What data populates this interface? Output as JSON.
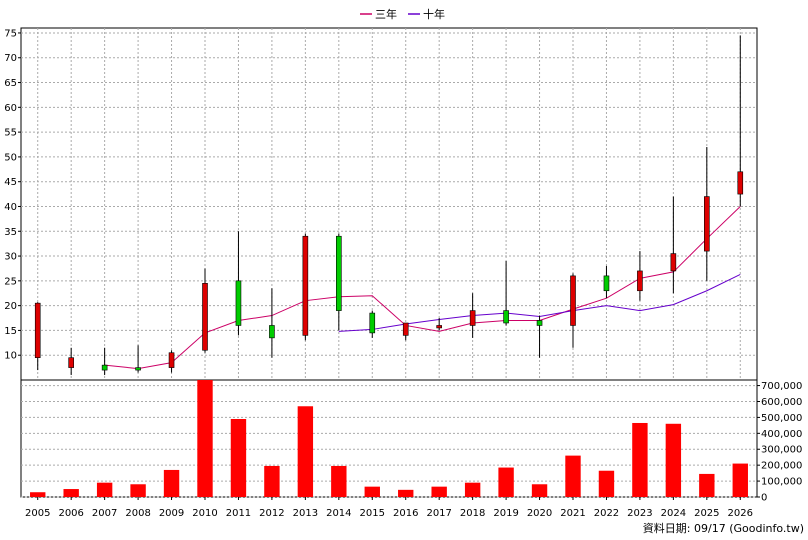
{
  "legend": [
    {
      "label": "三年",
      "color": "#cc0066"
    },
    {
      "label": "十年",
      "color": "#6600cc"
    }
  ],
  "footer": "資料日期: 09/17  (Goodinfo.tw)",
  "colors": {
    "up": "#dd0000",
    "down": "#00cc00",
    "volume": "#ff0000",
    "grid": "#aaaaaa"
  },
  "chart_data": {
    "type": "candlestick+bar",
    "categories": [
      "2005",
      "2006",
      "2007",
      "2008",
      "2009",
      "2010",
      "2011",
      "2012",
      "2013",
      "2014",
      "2015",
      "2016",
      "2017",
      "2018",
      "2019",
      "2020",
      "2021",
      "2022",
      "2023",
      "2024",
      "2025",
      "2026"
    ],
    "price_axis": {
      "ylim": [
        5,
        76
      ],
      "ticks": [
        10,
        15,
        20,
        25,
        30,
        35,
        40,
        45,
        50,
        55,
        60,
        65,
        70,
        75
      ]
    },
    "volume_axis": {
      "ylim": [
        0,
        735000
      ],
      "ticks": [
        0,
        100000,
        200000,
        300000,
        400000,
        500000,
        600000,
        700000
      ],
      "tick_labels": [
        "0",
        "100,000",
        "200,000",
        "300,000",
        "400,000",
        "500,000",
        "600,000",
        "700,000"
      ]
    },
    "candles": [
      {
        "year": "2005",
        "open": 9.5,
        "close": 20.5,
        "high": 20.7,
        "low": 7.0
      },
      {
        "year": "2006",
        "open": 7.5,
        "close": 9.5,
        "high": 11.5,
        "low": 6.0
      },
      {
        "year": "2007",
        "open": 8.0,
        "close": 7.0,
        "high": 11.5,
        "low": 6.0
      },
      {
        "year": "2008",
        "open": 7.5,
        "close": 7.0,
        "high": 12.0,
        "low": 6.5
      },
      {
        "year": "2009",
        "open": 7.5,
        "close": 10.5,
        "high": 11.0,
        "low": 6.5
      },
      {
        "year": "2010",
        "open": 11.0,
        "close": 24.5,
        "high": 27.5,
        "low": 10.5
      },
      {
        "year": "2011",
        "open": 25.0,
        "close": 16.0,
        "high": 35.0,
        "low": 14.0
      },
      {
        "year": "2012",
        "open": 16.0,
        "close": 13.5,
        "high": 23.5,
        "low": 9.5
      },
      {
        "year": "2013",
        "open": 14.0,
        "close": 34.0,
        "high": 34.5,
        "low": 13.0
      },
      {
        "year": "2014",
        "open": 34.0,
        "close": 19.0,
        "high": 34.5,
        "low": 15.0
      },
      {
        "year": "2015",
        "open": 18.5,
        "close": 14.5,
        "high": 19.0,
        "low": 13.5
      },
      {
        "year": "2016",
        "open": 14.0,
        "close": 16.5,
        "high": 16.5,
        "low": 13.0
      },
      {
        "year": "2017",
        "open": 15.5,
        "close": 16.0,
        "high": 17.5,
        "low": 15.0
      },
      {
        "year": "2018",
        "open": 16.0,
        "close": 19.0,
        "high": 22.5,
        "low": 13.5
      },
      {
        "year": "2019",
        "open": 19.0,
        "close": 16.5,
        "high": 29.0,
        "low": 16.0
      },
      {
        "year": "2020",
        "open": 17.0,
        "close": 16.0,
        "high": 18.0,
        "low": 9.5
      },
      {
        "year": "2021",
        "open": 16.0,
        "close": 26.0,
        "high": 26.5,
        "low": 11.5
      },
      {
        "year": "2022",
        "open": 26.0,
        "close": 23.0,
        "high": 28.0,
        "low": 21.5
      },
      {
        "year": "2023",
        "open": 23.0,
        "close": 27.0,
        "high": 31.0,
        "low": 21.0
      },
      {
        "year": "2024",
        "open": 27.0,
        "close": 30.5,
        "high": 42.0,
        "low": 22.5
      },
      {
        "year": "2025",
        "open": 31.0,
        "close": 42.0,
        "high": 52.0,
        "low": 25.0
      },
      {
        "year": "2026",
        "open": 42.5,
        "close": 47.0,
        "high": 74.5,
        "low": 40.0
      }
    ],
    "series": [
      {
        "name": "三年",
        "x": [
          "2007",
          "2008",
          "2009",
          "2010",
          "2011",
          "2012",
          "2013",
          "2014",
          "2015",
          "2016",
          "2017",
          "2018",
          "2019",
          "2020",
          "2021",
          "2022",
          "2023",
          "2024",
          "2025",
          "2026"
        ],
        "values": [
          8.0,
          7.3,
          8.5,
          14.5,
          17.0,
          18.0,
          21.0,
          21.8,
          22.0,
          16.0,
          14.8,
          16.5,
          17.0,
          17.0,
          19.3,
          21.5,
          25.5,
          26.8,
          33.5,
          40.0
        ]
      },
      {
        "name": "十年",
        "x": [
          "2014",
          "2015",
          "2016",
          "2017",
          "2018",
          "2019",
          "2020",
          "2021",
          "2022",
          "2023",
          "2024",
          "2025",
          "2026"
        ],
        "values": [
          14.8,
          15.2,
          16.3,
          17.2,
          18.0,
          18.5,
          17.8,
          19.0,
          20.0,
          19.0,
          20.2,
          23.0,
          26.3
        ]
      }
    ],
    "volume": [
      30000,
      50000,
      90000,
      80000,
      170000,
      735000,
      490000,
      195000,
      570000,
      195000,
      65000,
      45000,
      65000,
      90000,
      185000,
      80000,
      260000,
      165000,
      465000,
      460000,
      145000,
      210000
    ]
  }
}
